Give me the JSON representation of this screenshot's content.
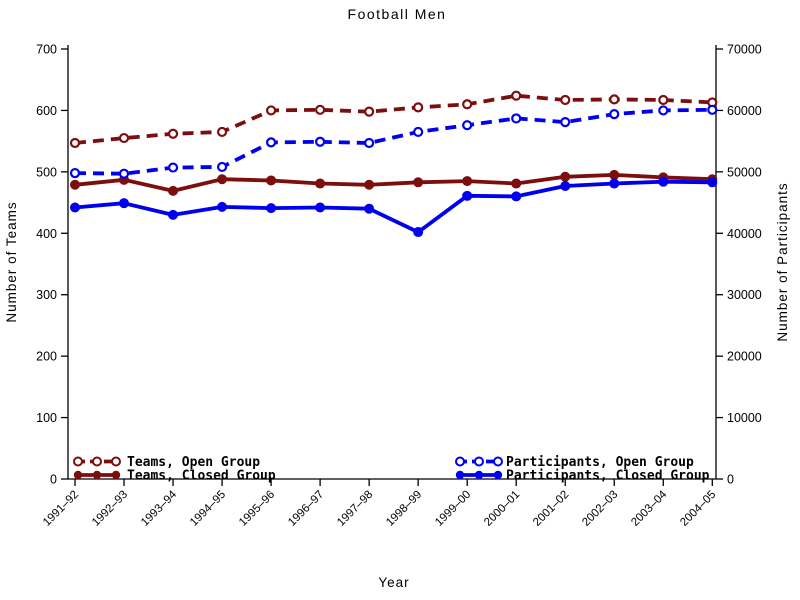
{
  "title": "Football Men",
  "axes": {
    "left": {
      "label": "Number of Teams",
      "ticks": [
        0,
        100,
        200,
        300,
        400,
        500,
        600,
        700
      ]
    },
    "right": {
      "label": "Number of Participants",
      "ticks": [
        0,
        10000,
        20000,
        30000,
        40000,
        50000,
        60000,
        70000
      ]
    },
    "x": {
      "label": "Year"
    }
  },
  "colors": {
    "teams": "#7D0E0E",
    "participants": "#0000EE",
    "axis": "#000000"
  },
  "chart_data": {
    "type": "line",
    "title": "Football Men",
    "xlabel": "Year",
    "ylabel_left": "Number of Teams",
    "ylabel_right": "Number of Participants",
    "ylim_left": [
      0,
      700
    ],
    "ylim_right": [
      0,
      70000
    ],
    "grid": false,
    "legend_position": "bottom-inside",
    "categories": [
      "1991–92",
      "1992–93",
      "1993–94",
      "1994–95",
      "1995–96",
      "1996–97",
      "1997–98",
      "1998–99",
      "1999–00",
      "2000–01",
      "2001–02",
      "2002–03",
      "2003–04",
      "2004–05"
    ],
    "series": [
      {
        "name": "Teams, Open Group",
        "axis": "left",
        "style": "dashed",
        "marker": "open",
        "color": "#7D0E0E",
        "values": [
          547,
          555,
          562,
          565,
          600,
          601,
          598,
          605,
          610,
          624,
          617,
          618,
          617,
          613
        ]
      },
      {
        "name": "Teams, Closed Group",
        "axis": "left",
        "style": "solid",
        "marker": "filled",
        "color": "#7D0E0E",
        "values": [
          479,
          487,
          469,
          488,
          486,
          481,
          479,
          483,
          485,
          481,
          492,
          495,
          491,
          488
        ]
      },
      {
        "name": "Participants, Open Group",
        "axis": "right",
        "style": "dashed",
        "marker": "open",
        "color": "#0000EE",
        "values": [
          49800,
          49700,
          50700,
          50800,
          54800,
          54900,
          54700,
          56500,
          57600,
          58700,
          58100,
          59400,
          60000,
          60100
        ]
      },
      {
        "name": "Participants, Closed Group",
        "axis": "right",
        "style": "solid",
        "marker": "filled",
        "color": "#0000EE",
        "values": [
          44200,
          44900,
          43000,
          44300,
          44100,
          44200,
          44000,
          40200,
          46100,
          46000,
          47700,
          48100,
          48400,
          48300
        ]
      }
    ]
  },
  "legend": {
    "left_column": [
      "Teams, Open Group",
      "Teams, Closed Group"
    ],
    "right_column": [
      "Participants, Open Group",
      "Participants, Closed Group"
    ]
  }
}
